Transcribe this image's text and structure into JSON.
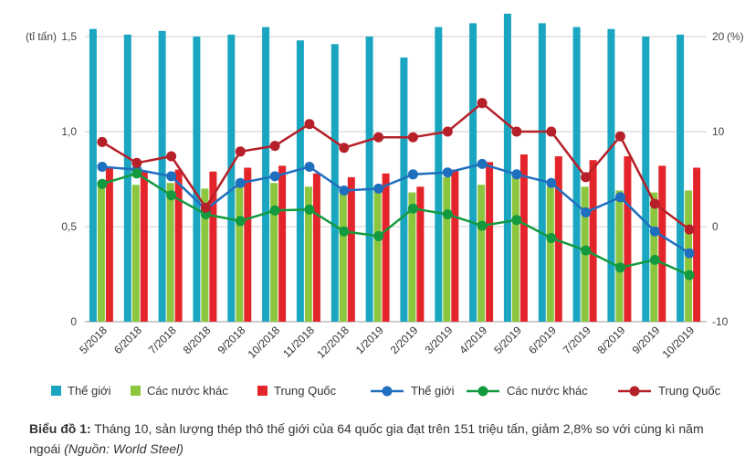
{
  "chart_data": {
    "type": "bar+line",
    "categories": [
      "5/2018",
      "6/2018",
      "7/2018",
      "8/2018",
      "9/2018",
      "10/2018",
      "11/2018",
      "12/2018",
      "1/2019",
      "2/2019",
      "3/2019",
      "4/2019",
      "5/2019",
      "6/2019",
      "7/2019",
      "8/2019",
      "9/2019",
      "10/2019"
    ],
    "left_axis": {
      "label": "(tỉ tấn)",
      "ylim": [
        0,
        1.5
      ],
      "ticks": [
        "0",
        "0,5",
        "1,0",
        "1,5"
      ]
    },
    "right_axis": {
      "label": "(%)",
      "ylim": [
        -10,
        20
      ],
      "ticks": [
        "-10",
        "0",
        "10",
        "20"
      ]
    },
    "bar_series": [
      {
        "name": "Thế giới",
        "color": "#1aa6c1",
        "values": [
          1.54,
          1.51,
          1.53,
          1.5,
          1.51,
          1.55,
          1.48,
          1.46,
          1.5,
          1.39,
          1.55,
          1.57,
          1.62,
          1.57,
          1.55,
          1.54,
          1.5,
          1.51
        ]
      },
      {
        "name": "Các nước khác",
        "color": "#8cc63e",
        "values": [
          0.73,
          0.72,
          0.73,
          0.7,
          0.71,
          0.73,
          0.71,
          0.7,
          0.71,
          0.68,
          0.76,
          0.72,
          0.77,
          0.71,
          0.71,
          0.69,
          0.68,
          0.69
        ]
      },
      {
        "name": "Trung Quốc",
        "color": "#e3252b",
        "values": [
          0.81,
          0.79,
          0.8,
          0.79,
          0.81,
          0.82,
          0.78,
          0.76,
          0.78,
          0.71,
          0.8,
          0.84,
          0.88,
          0.87,
          0.85,
          0.87,
          0.82,
          0.81
        ]
      }
    ],
    "line_series": [
      {
        "name": "Thế giới",
        "color": "#1f6fbf",
        "values": [
          6.3,
          6.0,
          5.3,
          1.8,
          4.6,
          5.3,
          6.3,
          3.8,
          4.0,
          5.5,
          5.7,
          6.6,
          5.5,
          4.6,
          1.5,
          3.1,
          -0.5,
          -2.8
        ]
      },
      {
        "name": "Các nước khác",
        "color": "#139a3f",
        "values": [
          4.5,
          5.6,
          3.3,
          1.3,
          0.6,
          1.7,
          1.8,
          -0.5,
          -1.0,
          1.9,
          1.3,
          0.1,
          0.7,
          -1.2,
          -2.5,
          -4.3,
          -3.5,
          -5.1
        ]
      },
      {
        "name": "Trung Quốc",
        "color": "#b52029",
        "values": [
          8.9,
          6.7,
          7.4,
          2.0,
          7.9,
          8.5,
          10.8,
          8.3,
          9.4,
          9.4,
          10.0,
          13.0,
          10.0,
          10.0,
          5.2,
          9.5,
          2.4,
          -0.3
        ]
      }
    ]
  },
  "caption": {
    "label": "Biểu đồ 1:",
    "text": " Tháng 10, sản lượng thép thô thế giới của 64 quốc gia đạt trên 151 triệu tấn, giảm 2,8% so với cùng kì năm ngoái ",
    "source": "(Nguồn: World Steel)"
  }
}
